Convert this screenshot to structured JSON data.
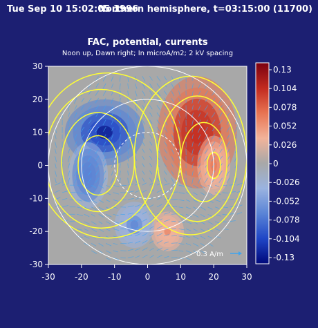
{
  "header": {
    "left": "Tue Sep 10 15:02:05 1996",
    "right": "Northern hemisphere, t=03:15:00 (11700)"
  },
  "chart_data": {
    "type": "heatmap",
    "title": "FAC, potential, currents",
    "subtitle": "Noon up, Dawn right; In microA/m2; 2 kV spacing",
    "xlim": [
      -30,
      30
    ],
    "ylim": [
      -30,
      30
    ],
    "x_ticks": [
      -30,
      -20,
      -10,
      0,
      10,
      20,
      30
    ],
    "y_ticks": [
      30,
      20,
      10,
      0,
      -10,
      -20,
      -30
    ],
    "colorbar": {
      "min": -0.13,
      "max": 0.13,
      "tick_labels": [
        "0.13",
        "0.104",
        "0.078",
        "0.052",
        "0.026",
        "0",
        "-0.026",
        "-0.052",
        "-0.078",
        "-0.104",
        "-0.13"
      ],
      "colors": [
        "#7a0010",
        "#c22a1f",
        "#e87452",
        "#f2b39a",
        "#a8a8a8",
        "#9ab3e0",
        "#5a84d6",
        "#1f46c6",
        "#00087a"
      ]
    },
    "blobs": [
      {
        "x": 15,
        "y": 10,
        "rx": 12,
        "ry": 17,
        "value": 0.11
      },
      {
        "x": 20,
        "y": 0,
        "rx": 5,
        "ry": 9,
        "value": 0.06
      },
      {
        "x": 6,
        "y": -20,
        "rx": 5,
        "ry": 6,
        "value": 0.05
      },
      {
        "x": -13,
        "y": 10,
        "rx": 12,
        "ry": 10,
        "value": -0.12
      },
      {
        "x": -18,
        "y": -3,
        "rx": 6,
        "ry": 10,
        "value": -0.08
      },
      {
        "x": -4,
        "y": -18,
        "rx": 6,
        "ry": 7,
        "value": -0.06
      }
    ],
    "potential_contours": [
      {
        "x": -15,
        "y": 0,
        "rx": 6,
        "ry": 9
      },
      {
        "x": -15,
        "y": 1,
        "rx": 11,
        "ry": 15
      },
      {
        "x": -14,
        "y": 2,
        "rx": 17,
        "ry": 21
      },
      {
        "x": -12,
        "y": 3,
        "rx": 22,
        "ry": 25
      },
      {
        "x": 20,
        "y": 0,
        "rx": 2,
        "ry": 4
      },
      {
        "x": 17,
        "y": 1,
        "rx": 7,
        "ry": 12
      },
      {
        "x": 15,
        "y": 2,
        "rx": 12,
        "ry": 19
      },
      {
        "x": 13,
        "y": 3,
        "rx": 17,
        "ry": 24
      }
    ],
    "latitude_circles": [
      10,
      20,
      30
    ],
    "scale_arrow_label": "0.3 A/m"
  },
  "colors": {
    "background": "#1c1f72",
    "contour": "#ffff33",
    "arrows": "#3fa4ef"
  }
}
